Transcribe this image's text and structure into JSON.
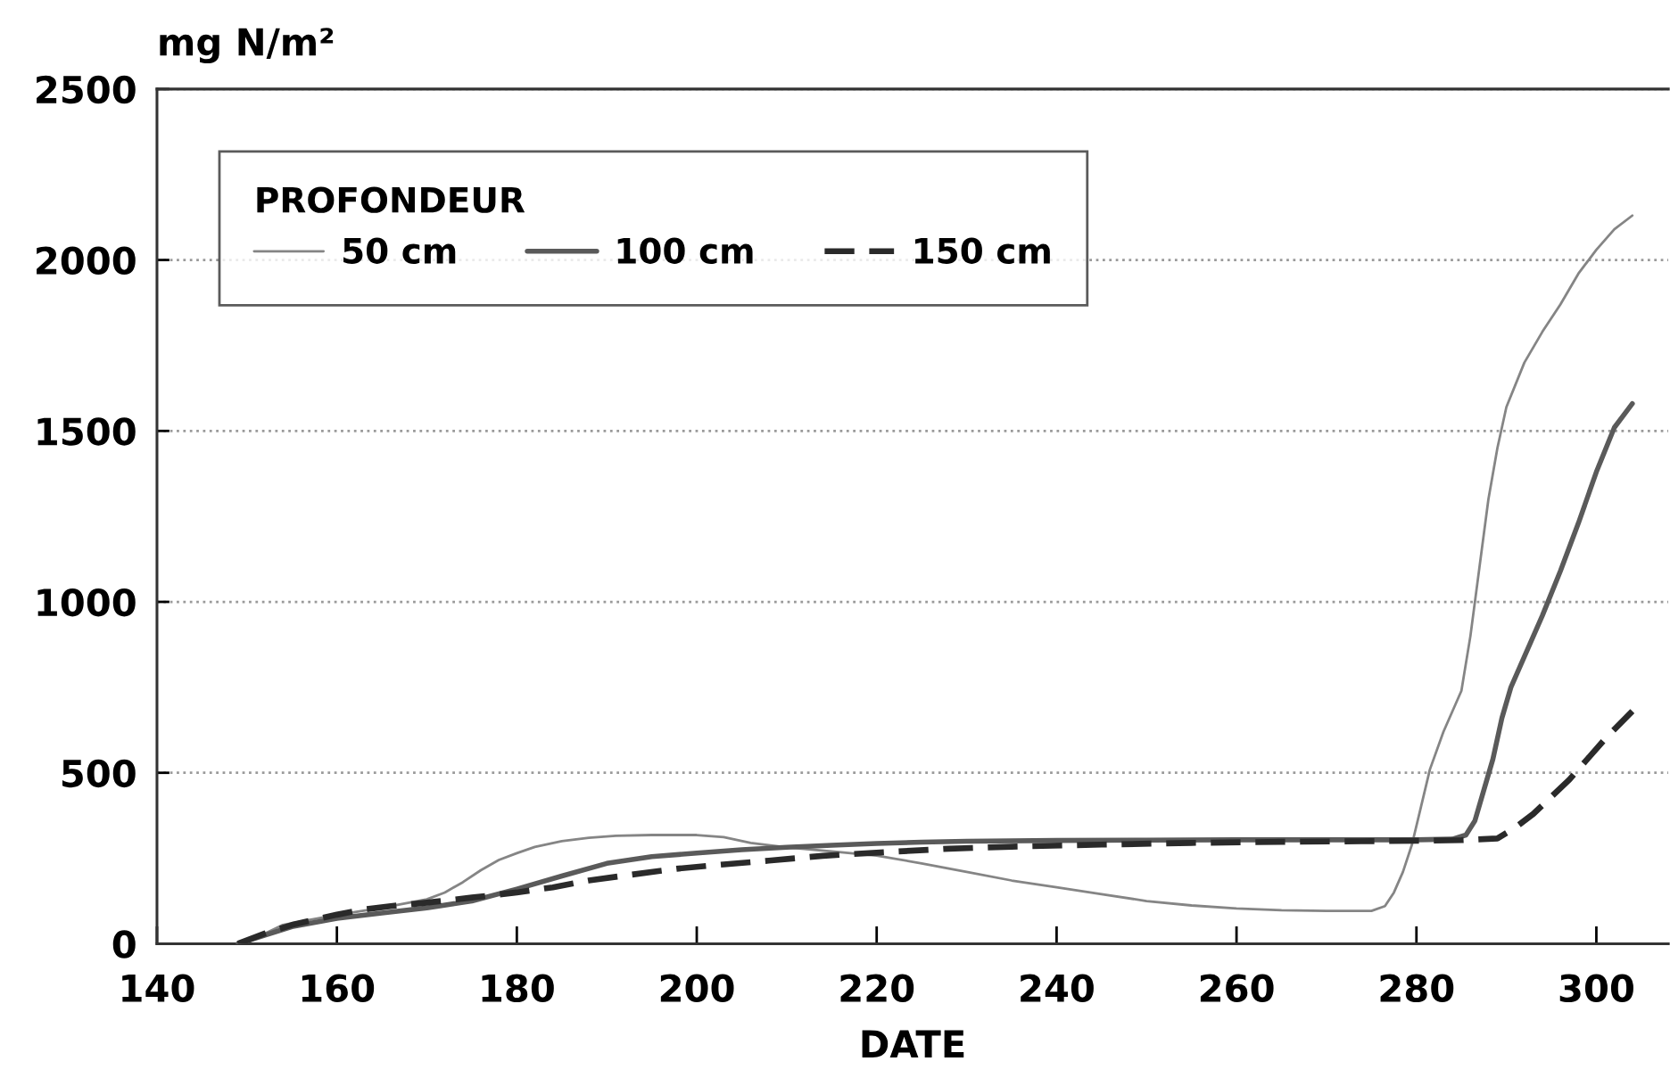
{
  "chart_data": {
    "type": "line",
    "xlabel": "DATE",
    "ylabel": "mg N/m²",
    "legend_title": "PROFONDEUR",
    "xlim": [
      140,
      308
    ],
    "xticks": [
      140,
      160,
      180,
      200,
      220,
      240,
      260,
      280,
      300
    ],
    "ylim": [
      0,
      2500
    ],
    "yticks": [
      0,
      500,
      1000,
      1500,
      2000,
      2500
    ],
    "grid": "y",
    "legend": "top left",
    "series": [
      {
        "name": "50 cm",
        "color": "#858585",
        "line_style": "solid",
        "x": [
          149,
          152,
          154,
          157,
          160,
          165,
          170,
          172,
          174,
          176,
          178,
          180,
          182,
          185,
          188,
          191,
          195,
          200,
          203,
          206,
          210,
          215,
          220,
          225,
          230,
          235,
          240,
          245,
          250,
          255,
          260,
          265,
          270,
          275,
          276.5,
          277.5,
          278.5,
          279.5,
          280.5,
          281.5,
          283,
          285,
          286,
          287,
          288,
          289,
          290,
          292,
          294,
          296,
          298,
          300,
          302,
          304
        ],
        "values": [
          0,
          30,
          55,
          70,
          84,
          105,
          130,
          150,
          180,
          215,
          245,
          265,
          283,
          300,
          310,
          316,
          318,
          318,
          312,
          295,
          282,
          270,
          258,
          235,
          210,
          185,
          165,
          145,
          125,
          112,
          103,
          98,
          96,
          96,
          110,
          150,
          210,
          290,
          400,
          510,
          620,
          740,
          900,
          1100,
          1300,
          1450,
          1570,
          1700,
          1790,
          1870,
          1960,
          2030,
          2090,
          2130
        ]
      },
      {
        "name": "100 cm",
        "color": "#5a5a5a",
        "line_style": "solid",
        "x": [
          149,
          152,
          155,
          160,
          165,
          170,
          175,
          180,
          185,
          190,
          195,
          200,
          205,
          210,
          215,
          220,
          225,
          230,
          240,
          250,
          260,
          270,
          280,
          284,
          285.5,
          286.5,
          287.5,
          288.5,
          289.5,
          290.5,
          292,
          294,
          296,
          298,
          300,
          302,
          304
        ],
        "values": [
          0,
          25,
          50,
          74,
          90,
          105,
          125,
          160,
          198,
          235,
          255,
          265,
          275,
          282,
          288,
          293,
          297,
          300,
          302,
          303,
          304,
          304,
          304,
          306,
          318,
          360,
          450,
          540,
          660,
          750,
          840,
          960,
          1090,
          1230,
          1380,
          1510,
          1580
        ]
      },
      {
        "name": "150 cm",
        "color": "#2a2a2a",
        "line_style": "dashed",
        "x": [
          149,
          152,
          155,
          160,
          163,
          166,
          170,
          175,
          180,
          184,
          188,
          193,
          198,
          203,
          208,
          214,
          221,
          228,
          235,
          245,
          255,
          265,
          275,
          285,
          289,
          291,
          293,
          295,
          297,
          299,
          301,
          304
        ],
        "values": [
          0,
          30,
          55,
          85,
          100,
          110,
          120,
          135,
          150,
          165,
          185,
          203,
          220,
          232,
          243,
          257,
          268,
          278,
          284,
          290,
          295,
          298,
          300,
          303,
          308,
          340,
          380,
          430,
          480,
          540,
          600,
          680
        ]
      }
    ]
  }
}
